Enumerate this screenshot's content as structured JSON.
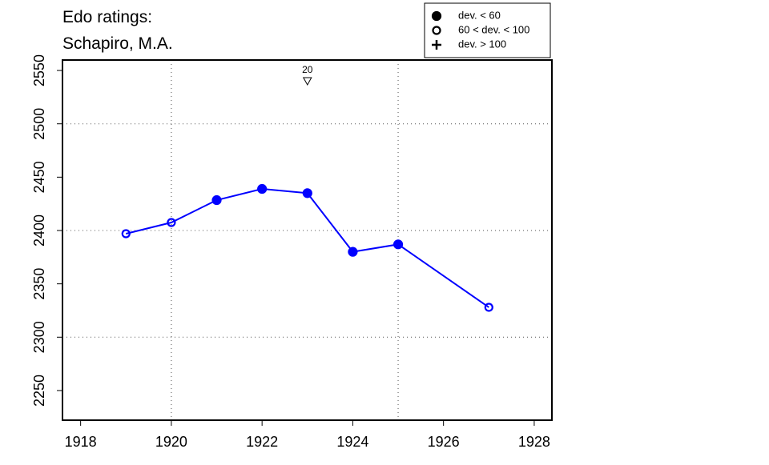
{
  "chart_data": {
    "type": "line",
    "title_lines": [
      "Edo ratings:",
      "Schapiro, M.A."
    ],
    "x": [
      1919,
      1920,
      1921,
      1922,
      1923,
      1924,
      1925,
      1927
    ],
    "series": [
      {
        "color": "#0000ff",
        "values": [
          2397,
          2407.5,
          2428.5,
          2439,
          2435,
          2380,
          2387,
          2328
        ],
        "point_styles": [
          "open",
          "open",
          "filled",
          "filled",
          "filled",
          "filled",
          "filled",
          "open"
        ]
      }
    ],
    "xlim": [
      1917.6,
      1928.39
    ],
    "ylim": [
      2222.2,
      2559.8
    ],
    "xticks": [
      1918,
      1920,
      1922,
      1924,
      1926,
      1928
    ],
    "yticks": [
      2250,
      2300,
      2350,
      2400,
      2450,
      2500,
      2550
    ],
    "xgrid": [
      1920,
      1925
    ],
    "ygrid": [
      2300,
      2400,
      2500
    ],
    "annotations": [
      {
        "text": "20",
        "x": 1923
      }
    ],
    "legend": [
      {
        "label": "dev. < 60",
        "marker": "filled"
      },
      {
        "label": "60 < dev. < 100",
        "marker": "open"
      },
      {
        "label": "dev. > 100",
        "marker": "plus"
      }
    ]
  }
}
